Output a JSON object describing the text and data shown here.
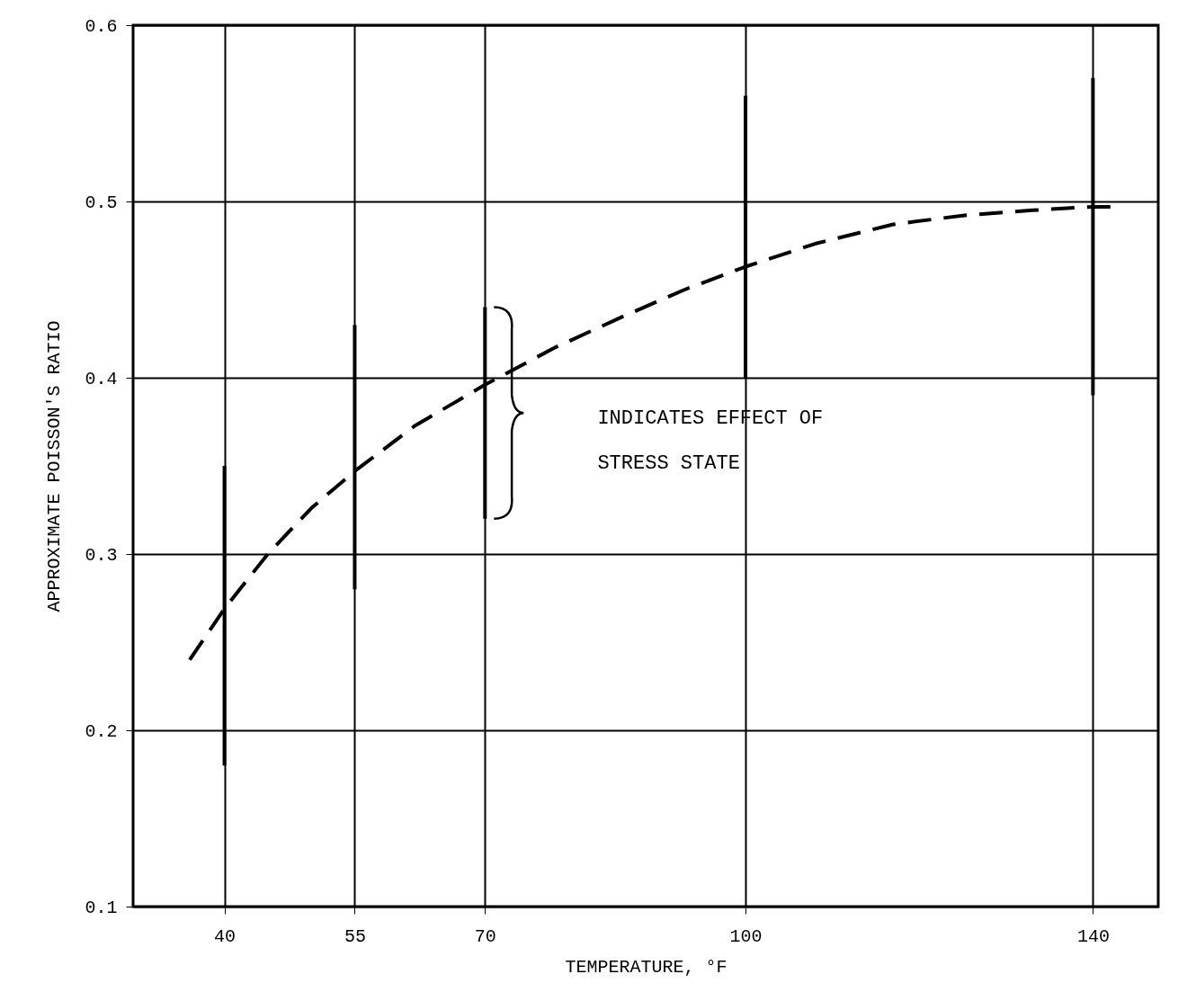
{
  "chart_data": {
    "type": "bar",
    "xlabel": "TEMPERATURE, °F",
    "ylabel": "APPROXIMATE POISSON'S RATIO",
    "xlim": [
      30,
      147
    ],
    "xticks": [
      40,
      55,
      70,
      100,
      140
    ],
    "ylim": [
      0.1,
      0.6
    ],
    "yticks": [
      0.1,
      0.2,
      0.3,
      0.4,
      0.5,
      0.6
    ],
    "grid": true,
    "series": [
      {
        "x": [
          40,
          55,
          70,
          100,
          140
        ],
        "base": [
          0.18,
          0.28,
          0.32,
          0.4,
          0.39
        ],
        "values": [
          0.17,
          0.15,
          0.12,
          0.16,
          0.18
        ],
        "color": "#000000"
      },
      {
        "type": "line",
        "line_style": "dashed",
        "color": "#000000",
        "x": [
          36,
          40,
          45,
          50,
          55,
          62,
          70,
          78,
          86,
          93,
          100,
          108,
          117,
          125,
          133,
          140,
          143
        ],
        "values": [
          0.24,
          0.269,
          0.3,
          0.326,
          0.347,
          0.373,
          0.396,
          0.417,
          0.435,
          0.45,
          0.463,
          0.476,
          0.487,
          0.492,
          0.495,
          0.497,
          0.497
        ]
      }
    ],
    "annotations": [
      "INDICATES EFFECT OF STRESS STATE"
    ]
  }
}
